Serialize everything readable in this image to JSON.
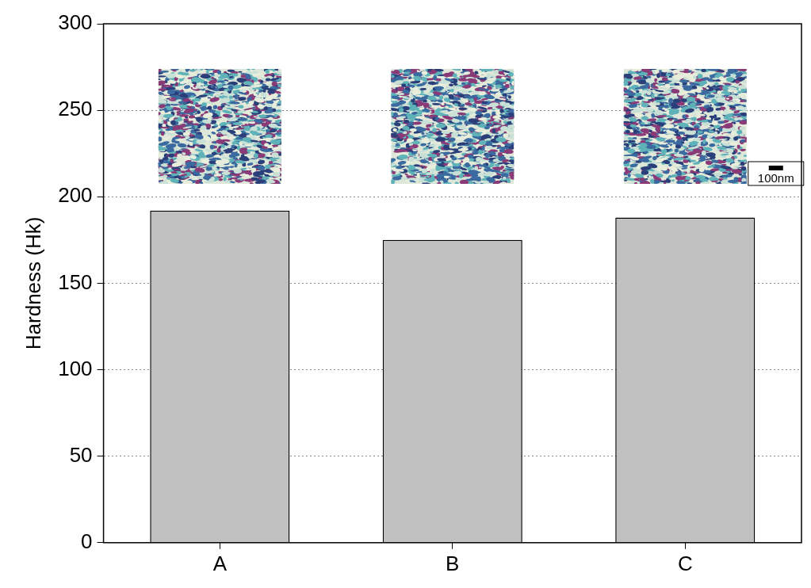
{
  "chart_data": {
    "type": "bar",
    "categories": [
      "A",
      "B",
      "C"
    ],
    "values": [
      192,
      175,
      188
    ],
    "color": "#c0c0c0",
    "ylabel": "Hardness (Hk)",
    "ylim": [
      0,
      300
    ],
    "yticks": [
      0,
      50,
      100,
      150,
      200,
      250,
      300
    ],
    "grid": true,
    "annotations": [
      "100nm"
    ]
  }
}
